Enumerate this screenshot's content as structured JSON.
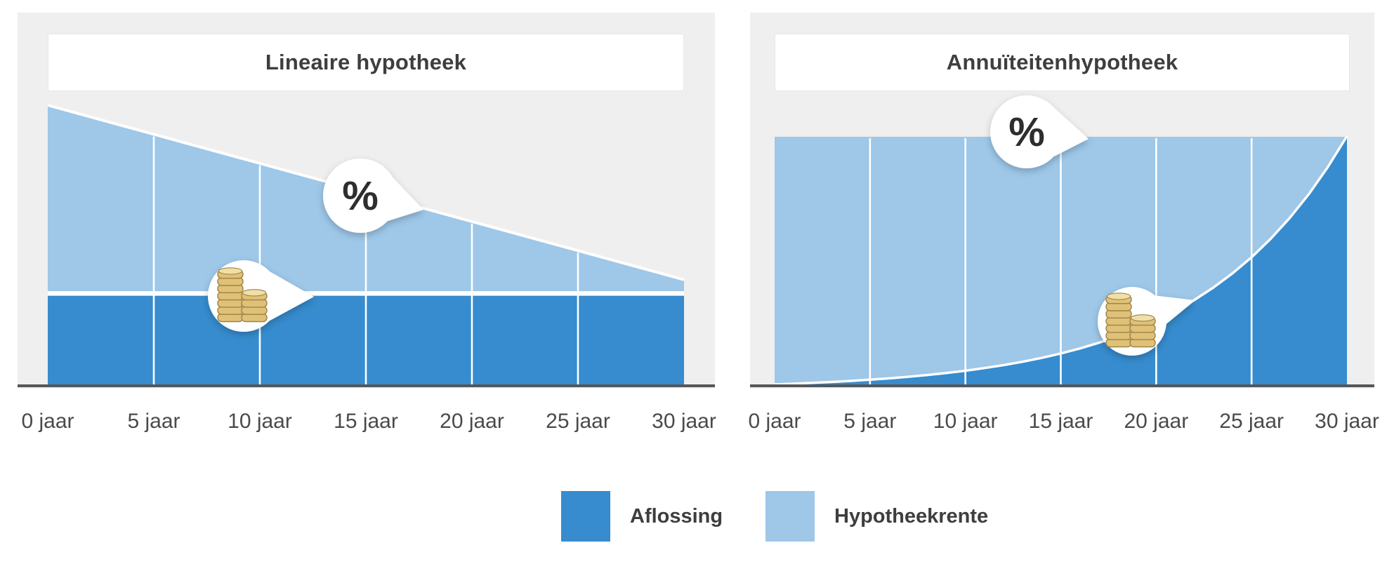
{
  "colors": {
    "aflossing": "#368CCE",
    "hypotheekrente": "#9EC7E8",
    "panel_bg": "#EFEFEF",
    "axis": "#55565A",
    "title_text": "#3E3E3E",
    "tick_text": "#4A4A4A",
    "gridline": "#FFFFFF",
    "bubble_bg": "#FFFFFF",
    "percent_text": "#2D2D2D",
    "coin_fill": "#DFC177",
    "coin_stroke": "#9F8348",
    "coin_top": "#F0DFA6"
  },
  "legend": {
    "items": [
      {
        "label": "Aflossing",
        "color_key": "aflossing"
      },
      {
        "label": "Hypotheekrente",
        "color_key": "hypotheekrente"
      }
    ]
  },
  "chart_data": [
    {
      "id": "lineaire",
      "type": "area",
      "title": "Lineaire hypotheek",
      "x_ticks": [
        "0 jaar",
        "5 jaar",
        "10 jaar",
        "15 jaar",
        "20 jaar",
        "25 jaar",
        "30 jaar"
      ],
      "x_years": [
        0,
        5,
        10,
        15,
        20,
        25,
        30
      ],
      "unit": "percent of initial monthly payment",
      "ylim": [
        0,
        100
      ],
      "grid": true,
      "series": [
        {
          "name": "Aflossing",
          "values_pct": [
            32,
            32,
            32,
            32,
            32,
            32,
            32
          ]
        },
        {
          "name": "Hypotheekrente",
          "values_pct": [
            68,
            57.58,
            47.17,
            36.75,
            26.33,
            15.92,
            5.5
          ]
        }
      ],
      "total_pct": [
        100,
        89.58,
        79.17,
        68.75,
        58.33,
        47.92,
        37.5
      ],
      "annotations": [
        {
          "icon": "percent",
          "label": "%",
          "points_at": "hypotheekrente top line"
        },
        {
          "icon": "coins",
          "label": "",
          "points_at": "aflossing boundary line"
        }
      ]
    },
    {
      "id": "annuiteiten",
      "type": "area",
      "title": "Annuïteitenhypotheek",
      "x_ticks": [
        "0 jaar",
        "5 jaar",
        "10 jaar",
        "15 jaar",
        "20 jaar",
        "25 jaar",
        "30 jaar"
      ],
      "x_years_step": 1,
      "unit": "percent of constant monthly payment",
      "ylim": [
        0,
        100
      ],
      "grid": true,
      "total_pct_constant": 100,
      "aflossing_pct_by_year": [
        0,
        0.29,
        0.61,
        0.99,
        1.41,
        1.89,
        2.44,
        3.07,
        3.78,
        4.59,
        5.52,
        6.57,
        7.77,
        9.13,
        10.69,
        12.46,
        14.47,
        16.77,
        19.38,
        22.36,
        25.75,
        29.61,
        34.01,
        39.02,
        44.72,
        51.22,
        58.62,
        67.04,
        76.63,
        87.56,
        100
      ],
      "annotations": [
        {
          "icon": "percent",
          "label": "%",
          "points_at": "flat total payment line"
        },
        {
          "icon": "coins",
          "label": "",
          "points_at": "aflossing curve"
        }
      ]
    }
  ]
}
